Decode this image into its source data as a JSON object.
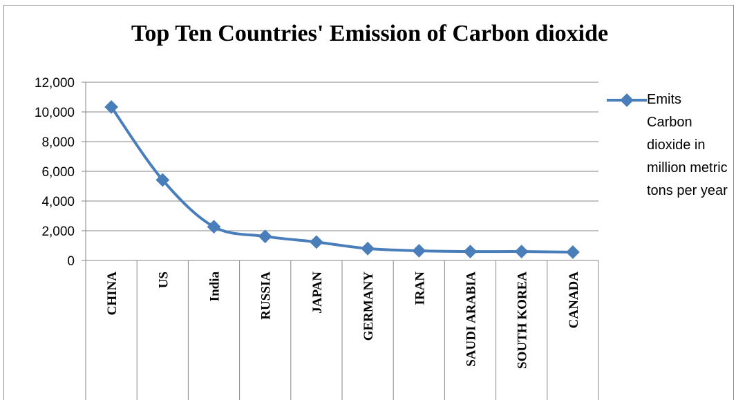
{
  "chart_data": {
    "type": "line",
    "title": "Top Ten Countries' Emission of Carbon dioxide",
    "categories": [
      "CHINA",
      "US",
      "India",
      "RUSSIA",
      "JAPAN",
      "GERMANY",
      "IRAN",
      "SAUDI ARABIA",
      "SOUTH KOREA",
      "CANADA"
    ],
    "series": [
      {
        "name": "Emits Carbon dioxide in million metric tons per year",
        "values": [
          10330,
          5420,
          2270,
          1620,
          1240,
          800,
          650,
          600,
          600,
          560
        ]
      }
    ],
    "ylim": [
      0,
      12000
    ],
    "yticks": [
      0,
      2000,
      4000,
      6000,
      8000,
      10000,
      12000
    ],
    "ytick_labels": [
      "0",
      "2,000",
      "4,000",
      "6,000",
      "8,000",
      "10,000",
      "12,000"
    ],
    "grid": true,
    "legend_position": "right",
    "colors": {
      "series": "#4a7ebb",
      "grid": "#868686",
      "axis": "#868686"
    }
  }
}
